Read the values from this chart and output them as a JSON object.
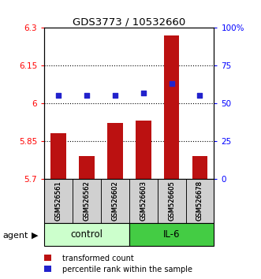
{
  "title": "GDS3773 / 10532660",
  "samples": [
    "GSM526561",
    "GSM526562",
    "GSM526602",
    "GSM526603",
    "GSM526605",
    "GSM526678"
  ],
  "bar_values": [
    5.88,
    5.79,
    5.92,
    5.93,
    6.27,
    5.79
  ],
  "percentile_values": [
    55,
    55,
    55,
    57,
    63,
    55
  ],
  "groups": [
    "control",
    "control",
    "control",
    "IL-6",
    "IL-6",
    "IL-6"
  ],
  "ylim_left": [
    5.7,
    6.3
  ],
  "ylim_right": [
    0,
    100
  ],
  "yticks_left": [
    5.7,
    5.85,
    6.0,
    6.15,
    6.3
  ],
  "yticks_right": [
    0,
    25,
    50,
    75,
    100
  ],
  "ytick_labels_right": [
    "0",
    "25",
    "50",
    "75",
    "100%"
  ],
  "bar_color": "#bb1111",
  "dot_color": "#2222cc",
  "bar_width": 0.55,
  "control_color": "#ccffcc",
  "il6_color": "#44cc44",
  "sample_box_color": "#d0d0d0",
  "legend_bar_label": "transformed count",
  "legend_dot_label": "percentile rank within the sample",
  "agent_label": "agent",
  "group_labels": [
    "control",
    "IL-6"
  ],
  "left_tick_labels": [
    "5.7",
    "5.85",
    "6",
    "6.15",
    "6.3"
  ]
}
